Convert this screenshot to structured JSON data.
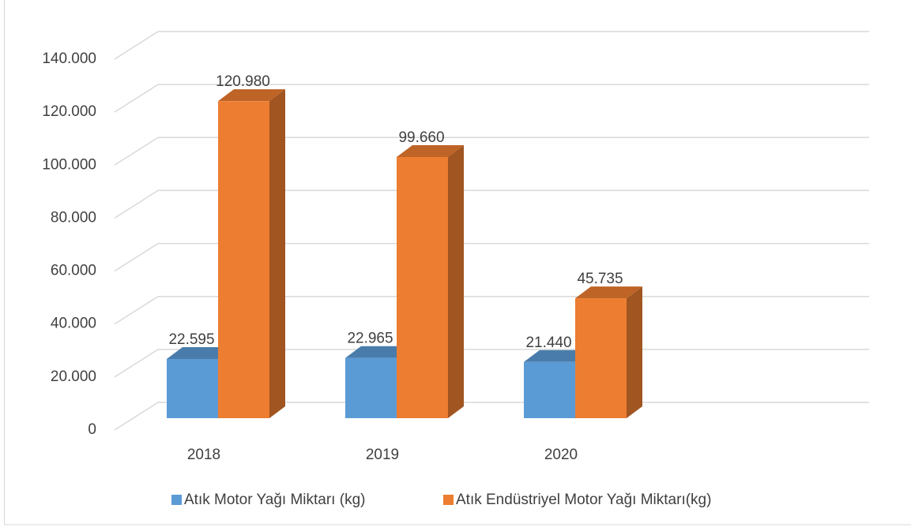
{
  "chart_data": {
    "type": "bar3d",
    "categories": [
      "2018",
      "2019",
      "2020"
    ],
    "series": [
      {
        "name": "Atık Motor Yağı Miktarı (kg)",
        "color": "#5b9bd5",
        "values": [
          22595,
          22965,
          21440
        ],
        "value_labels": [
          "22.595",
          "22.965",
          "21.440"
        ]
      },
      {
        "name": "Atık Endüstriyel Motor Yağı Miktarı(kg)",
        "color": "#ed7d31",
        "values": [
          120980,
          99660,
          45735
        ],
        "value_labels": [
          "120.980",
          "99.660",
          "45.735"
        ]
      }
    ],
    "ylim": [
      0,
      140000
    ],
    "yticks": [
      0,
      {
        "value": 20000,
        "label": "20.000"
      },
      {
        "value": 40000,
        "label": "40.000"
      },
      {
        "value": 60000,
        "label": "60.000"
      },
      {
        "value": 80000,
        "label": "80.000"
      },
      {
        "value": 100000,
        "label": "100.000"
      },
      {
        "value": 120000,
        "label": "120.000"
      },
      {
        "value": 140000,
        "label": "140.000"
      }
    ],
    "grid": true,
    "legend": "bottom"
  }
}
